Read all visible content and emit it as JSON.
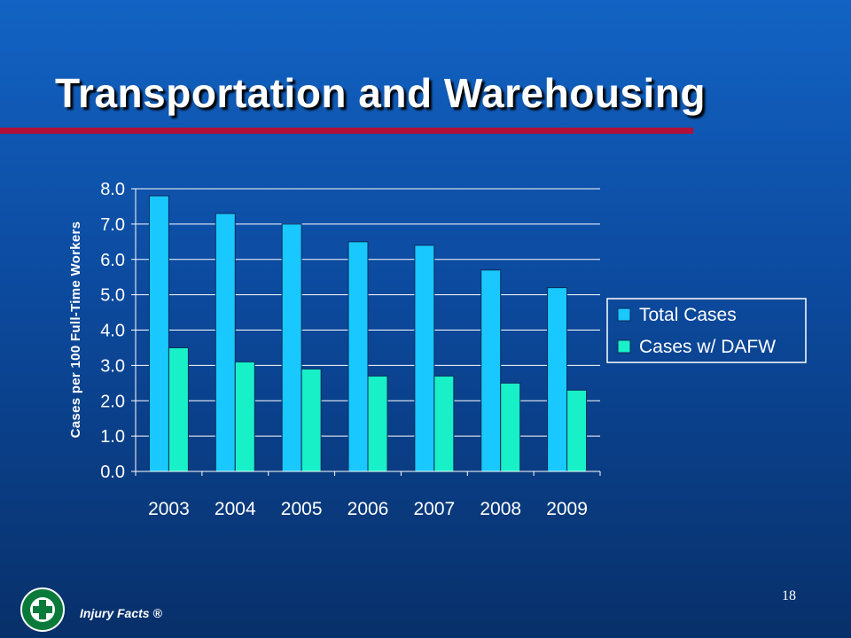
{
  "slide": {
    "title": "Transportation and Warehousing",
    "page_number": "18",
    "footer_text": "Injury Facts ®",
    "title_rule_color": "#b0103a"
  },
  "chart_data": {
    "type": "bar",
    "categories": [
      "2003",
      "2004",
      "2005",
      "2006",
      "2007",
      "2008",
      "2009"
    ],
    "series": [
      {
        "name": "Total Cases",
        "values": [
          7.8,
          7.3,
          7.0,
          6.5,
          6.4,
          5.7,
          5.2
        ],
        "color": "#18c8ff"
      },
      {
        "name": "Cases w/ DAFW",
        "values": [
          3.5,
          3.1,
          2.9,
          2.7,
          2.7,
          2.5,
          2.3
        ],
        "color": "#18f0c8"
      }
    ],
    "ylabel": "Cases per 100 Full-Time Workers",
    "ylim": [
      0,
      8
    ],
    "yticks": [
      "0.0",
      "1.0",
      "2.0",
      "3.0",
      "4.0",
      "5.0",
      "6.0",
      "7.0",
      "8.0"
    ],
    "grid": true,
    "legend": "right"
  }
}
